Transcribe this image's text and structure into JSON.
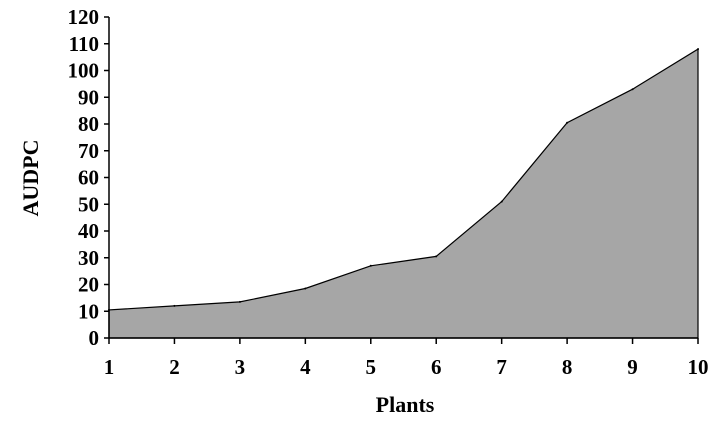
{
  "chart_data": {
    "type": "area",
    "title": "",
    "xlabel": "Plants",
    "ylabel": "AUDPC",
    "x": [
      1,
      2,
      3,
      4,
      5,
      6,
      7,
      8,
      9,
      10
    ],
    "series": [
      {
        "values": [
          10.5,
          12,
          13.5,
          18.5,
          27,
          30.5,
          51,
          80.5,
          93,
          108
        ]
      }
    ],
    "xlim": [
      1,
      10
    ],
    "ylim": [
      0,
      120
    ],
    "yticks": [
      0,
      10,
      20,
      30,
      40,
      50,
      60,
      70,
      80,
      90,
      100,
      110,
      120
    ],
    "xticks": [
      1,
      2,
      3,
      4,
      5,
      6,
      7,
      8,
      9,
      10
    ],
    "grid": false,
    "legend": "none",
    "colors": {
      "fill": "#a6a6a6",
      "line": "#000000",
      "axis": "#000000"
    }
  }
}
